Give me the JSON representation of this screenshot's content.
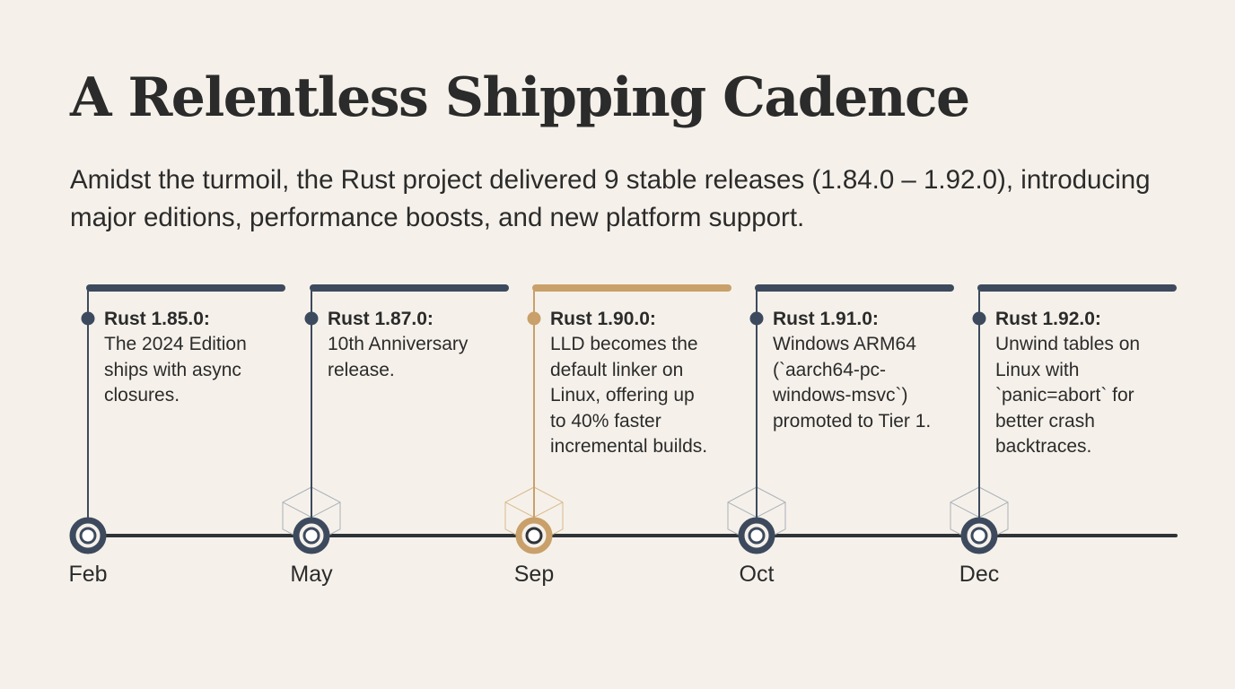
{
  "title": "A Relentless Shipping Cadence",
  "subtitle": "Amidst the turmoil, the Rust project delivered 9 stable releases (1.84.0 – 1.92.0), introducing major editions, performance boosts, and new platform support.",
  "colors": {
    "background": "#f5f1ea",
    "text": "#2b2b2b",
    "navy": "#3d4a5e",
    "gold": "#c9a06a",
    "axis": "#2f3337"
  },
  "releases": [
    {
      "month": "Feb",
      "version": "Rust 1.85.0:",
      "description": "The 2024 Edition\nships with async\nclosures.",
      "highlight": false
    },
    {
      "month": "May",
      "version": "Rust 1.87.0:",
      "description": "10th Anniversary\nrelease.",
      "highlight": false
    },
    {
      "month": "Sep",
      "version": "Rust 1.90.0:",
      "description": "LLD becomes the\ndefault linker on\nLinux, offering up\nto 40% faster\nincremental builds.",
      "highlight": true
    },
    {
      "month": "Oct",
      "version": "Rust 1.91.0:",
      "description": "Windows ARM64\n(`aarch64-pc-\nwindows-msvc`)\npromoted to Tier 1.",
      "highlight": false
    },
    {
      "month": "Dec",
      "version": "Rust 1.92.0:",
      "description": "Unwind tables on\nLinux with\n`panic=abort` for\nbetter crash\nbacktraces.",
      "highlight": false
    }
  ]
}
